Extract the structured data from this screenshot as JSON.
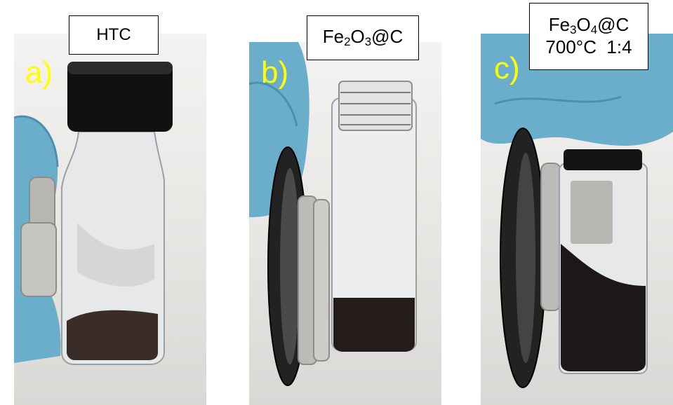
{
  "panels": [
    {
      "label": "a)",
      "tag_lines": [
        "HTC"
      ],
      "tag_html": "HTC"
    },
    {
      "label": "b)",
      "tag_lines": [
        "Fe2O3@C"
      ],
      "tag_html": "Fe<sub>2</sub>O<sub>3</sub>@C"
    },
    {
      "label": "c)",
      "tag_lines": [
        "Fe3O4@C",
        "700°C  1:4"
      ],
      "tag_html": "Fe<sub>3</sub>O<sub>4</sub>@C<br>700°C&nbsp;&nbsp;1:4"
    }
  ],
  "colors": {
    "label": "#ffff00",
    "glove": "#6aaecb",
    "cap": "#111111",
    "powder": "#2a2220"
  }
}
